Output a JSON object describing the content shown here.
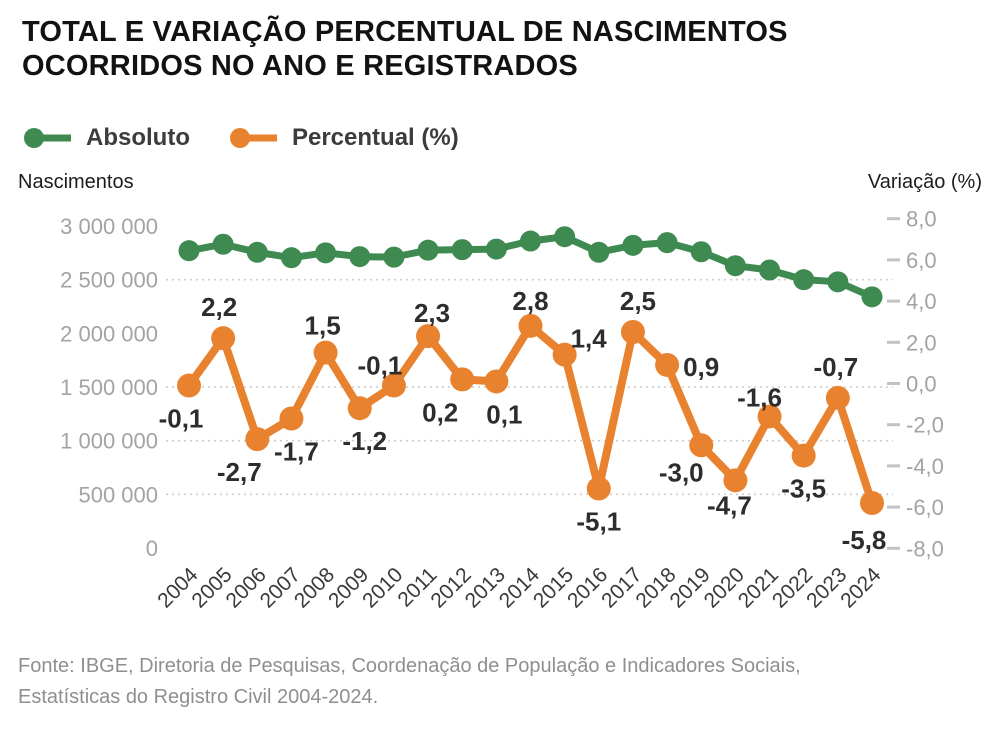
{
  "title": {
    "line1": "TOTAL E VARIAÇÃO PERCENTUAL DE NASCIMENTOS",
    "line2": "OCORRIDOS NO ANO E REGISTRADOS"
  },
  "legend": [
    {
      "label": "Absoluto",
      "color": "#3e8a51"
    },
    {
      "label": "Percentual (%)",
      "color": "#e8822f"
    }
  ],
  "axis_titles": {
    "left": "Nascimentos",
    "right": "Variação (%)"
  },
  "footer": {
    "line1": "Fonte: IBGE, Diretoria de Pesquisas, Coordenação de População e Indicadores Sociais,",
    "line2": "Estatísticas do Registro Civil 2004-2024."
  },
  "chart_data": {
    "type": "line",
    "title": "Total e variação percentual de nascimentos ocorridos no ano e registrados",
    "legend_position": "top",
    "categories": [
      "2004",
      "2005",
      "2006",
      "2007",
      "2008",
      "2009",
      "2010",
      "2011",
      "2012",
      "2013",
      "2014",
      "2015",
      "2016",
      "2017",
      "2018",
      "2019",
      "2020",
      "2021",
      "2022",
      "2023",
      "2024"
    ],
    "series": [
      {
        "name": "Absoluto",
        "axis": "left",
        "color": "#3e8a51",
        "values": [
          2770000,
          2830000,
          2755000,
          2705000,
          2750000,
          2715000,
          2710000,
          2775000,
          2780000,
          2785000,
          2860000,
          2900000,
          2755000,
          2820000,
          2845000,
          2760000,
          2630000,
          2590000,
          2500000,
          2480000,
          2340000
        ]
      },
      {
        "name": "Percentual (%)",
        "axis": "right",
        "color": "#e8822f",
        "values": [
          -0.1,
          2.2,
          -2.7,
          -1.7,
          1.5,
          -1.2,
          -0.1,
          2.3,
          0.2,
          0.1,
          2.8,
          1.4,
          -5.1,
          2.5,
          0.9,
          -3.0,
          -4.7,
          -1.6,
          -3.5,
          -0.7,
          -5.8
        ],
        "point_labels": [
          "-0,1",
          "2,2",
          "-2,7",
          "-1,7",
          "1,5",
          "-1,2",
          "-0,1",
          "2,3",
          "0,2",
          "0,1",
          "2,8",
          "1,4",
          "-5,1",
          "2,5",
          "0,9",
          "-3,0",
          "-4,7",
          "-1,6",
          "-3,5",
          "-0,7",
          "-5,8"
        ],
        "point_label_pos": [
          "below",
          "above",
          "below",
          "below",
          "above",
          "below",
          "above",
          "above",
          "below",
          "below",
          "above",
          "above",
          "below",
          "above",
          "right",
          "below",
          "below",
          "above",
          "below",
          "above",
          "below"
        ],
        "point_label_dx": [
          -8,
          -4,
          -18,
          5,
          -3,
          5,
          -14,
          4,
          -22,
          8,
          0,
          24,
          0,
          5,
          0,
          -20,
          -6,
          -10,
          0,
          -2,
          -8
        ],
        "point_label_dy": [
          0,
          0,
          0,
          0,
          4,
          0,
          11,
          8,
          0,
          0,
          6,
          15,
          0,
          0,
          0,
          -6,
          -8,
          12,
          0,
          0,
          4
        ]
      }
    ],
    "left_axis": {
      "title": "Nascimentos",
      "min": 0,
      "max": 3000000,
      "ticks": [
        {
          "value": 0,
          "label": "0"
        },
        {
          "value": 500000,
          "label": "500 000"
        },
        {
          "value": 1000000,
          "label": "1 000 000"
        },
        {
          "value": 1500000,
          "label": "1 500 000"
        },
        {
          "value": 2000000,
          "label": "2 000 000"
        },
        {
          "value": 2500000,
          "label": "2 500 000"
        },
        {
          "value": 3000000,
          "label": "3 000 000"
        }
      ]
    },
    "right_axis": {
      "title": "Variação (%)",
      "min": -8.0,
      "max": 8.0,
      "ticks": [
        {
          "value": 8,
          "label": "8,0"
        },
        {
          "value": 6,
          "label": "6,0"
        },
        {
          "value": 4,
          "label": "4,0"
        },
        {
          "value": 2,
          "label": "2,0"
        },
        {
          "value": 0,
          "label": "0,0"
        },
        {
          "value": -2,
          "label": "-2,0"
        },
        {
          "value": -4,
          "label": "-4,0"
        },
        {
          "value": -6,
          "label": "-6,0"
        },
        {
          "value": -8,
          "label": "-8,0"
        }
      ]
    },
    "gridlines": {
      "style": "dotted",
      "axis": "left",
      "values": [
        500000,
        1000000,
        1500000,
        2500000
      ]
    }
  }
}
